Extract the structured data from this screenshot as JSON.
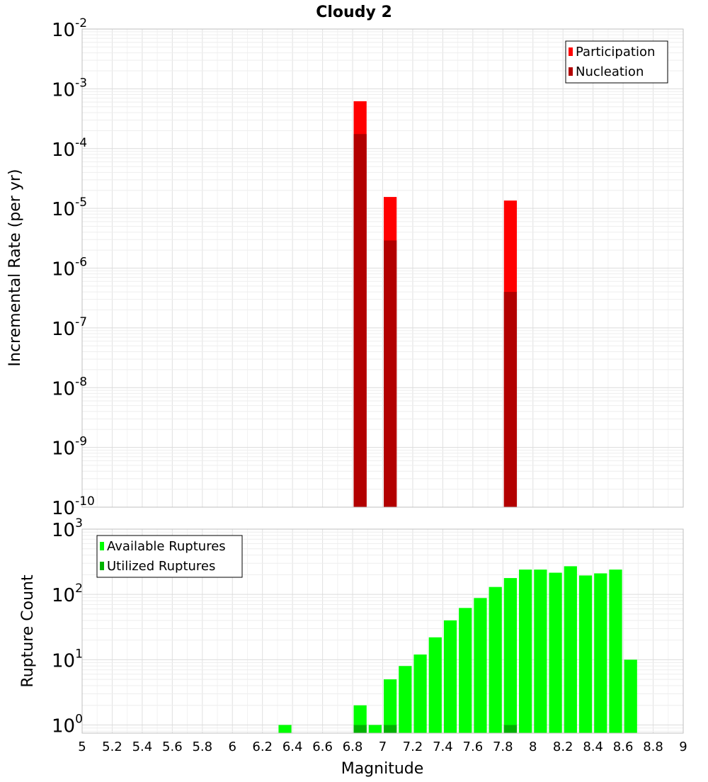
{
  "chart_data": {
    "type": "bar",
    "title": "Cloudy 2",
    "x_axis": {
      "label": "Magnitude",
      "range": [
        5,
        9
      ],
      "ticks": [
        "5",
        "5.2",
        "5.4",
        "5.6",
        "5.8",
        "6",
        "6.2",
        "6.4",
        "6.6",
        "6.8",
        "7",
        "7.2",
        "7.4",
        "7.6",
        "7.8",
        "8",
        "8.2",
        "8.4",
        "8.6",
        "8.8",
        "9"
      ]
    },
    "bin_width": 0.1,
    "panels": [
      {
        "id": "rate",
        "y_axis": {
          "label": "Incremental Rate (per yr)",
          "scale": "log",
          "range": [
            1e-10,
            0.01
          ],
          "exponents": [
            "-10",
            "-9",
            "-8",
            "-7",
            "-6",
            "-5",
            "-4",
            "-3",
            "-2"
          ]
        },
        "legend": {
          "placement": "top-right",
          "entries": [
            "Participation",
            "Nucleation"
          ]
        },
        "series": [
          {
            "name": "Participation",
            "color": "#ff0000",
            "points": [
              {
                "x": 6.85,
                "y": 0.00062
              },
              {
                "x": 7.05,
                "y": 1.55e-05
              },
              {
                "x": 7.85,
                "y": 1.35e-05
              }
            ]
          },
          {
            "name": "Nucleation",
            "color": "#b20000",
            "points": [
              {
                "x": 6.85,
                "y": 0.000175
              },
              {
                "x": 7.05,
                "y": 2.9e-06
              },
              {
                "x": 7.85,
                "y": 4e-07
              }
            ]
          }
        ]
      },
      {
        "id": "count",
        "y_axis": {
          "label": "Rupture Count",
          "scale": "log",
          "range": [
            0.75,
            1000
          ],
          "exponents": [
            "0",
            "1",
            "2",
            "3"
          ]
        },
        "legend": {
          "placement": "top-left",
          "entries": [
            "Available Ruptures",
            "Utilized Ruptures"
          ]
        },
        "series": [
          {
            "name": "Available Ruptures",
            "color": "#00ff00",
            "points": [
              {
                "x": 6.35,
                "y": 1
              },
              {
                "x": 6.85,
                "y": 2
              },
              {
                "x": 6.95,
                "y": 1
              },
              {
                "x": 7.05,
                "y": 5
              },
              {
                "x": 7.15,
                "y": 8
              },
              {
                "x": 7.25,
                "y": 12
              },
              {
                "x": 7.35,
                "y": 22
              },
              {
                "x": 7.45,
                "y": 40
              },
              {
                "x": 7.55,
                "y": 62
              },
              {
                "x": 7.65,
                "y": 88
              },
              {
                "x": 7.75,
                "y": 130
              },
              {
                "x": 7.85,
                "y": 178
              },
              {
                "x": 7.95,
                "y": 240
              },
              {
                "x": 8.05,
                "y": 240
              },
              {
                "x": 8.15,
                "y": 215
              },
              {
                "x": 8.25,
                "y": 270
              },
              {
                "x": 8.35,
                "y": 195
              },
              {
                "x": 8.45,
                "y": 210
              },
              {
                "x": 8.55,
                "y": 240
              },
              {
                "x": 8.65,
                "y": 10
              }
            ]
          },
          {
            "name": "Utilized Ruptures",
            "color": "#00b200",
            "points": [
              {
                "x": 6.85,
                "y": 1
              },
              {
                "x": 7.05,
                "y": 1
              },
              {
                "x": 7.85,
                "y": 1
              }
            ]
          }
        ]
      }
    ]
  }
}
